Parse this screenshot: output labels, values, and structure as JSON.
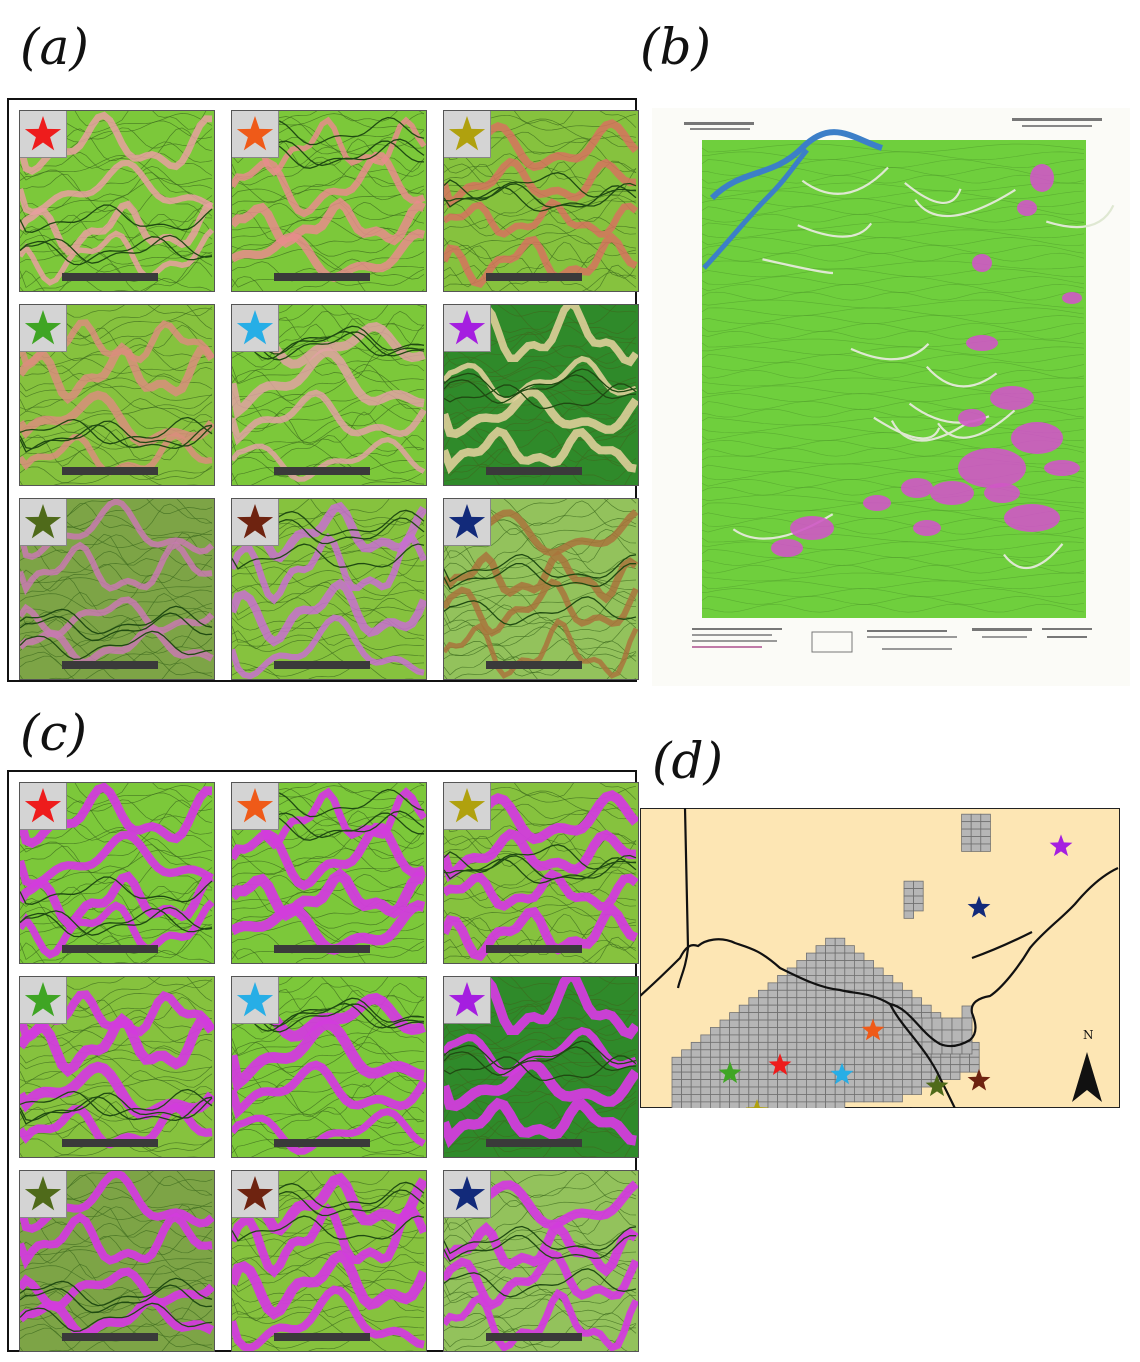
{
  "panels": {
    "a": {
      "label": "(a)"
    },
    "b": {
      "label": "(b)"
    },
    "c": {
      "label": "(c)"
    },
    "d": {
      "label": "(d)"
    }
  },
  "tiles": [
    {
      "id": "red",
      "color": "#ee1c1c",
      "base": "#7cc83a",
      "feature": "#e8a0a0"
    },
    {
      "id": "orange",
      "color": "#ef5a18",
      "base": "#7cc83a",
      "feature": "#e88c8c"
    },
    {
      "id": "olive",
      "color": "#b0a10e",
      "base": "#86c23e",
      "feature": "#d6735e"
    },
    {
      "id": "green",
      "color": "#3fa524",
      "base": "#86c23e",
      "feature": "#d98e7c"
    },
    {
      "id": "lightblue",
      "color": "#27aee6",
      "base": "#7cc83a",
      "feature": "#e0a2a2"
    },
    {
      "id": "purple",
      "color": "#a51ee0",
      "base": "#2f8a2a",
      "feature": "#e8d2a0"
    },
    {
      "id": "darkgreen",
      "color": "#4f6a1a",
      "base": "#7da446",
      "feature": "#c87ab0"
    },
    {
      "id": "brown",
      "color": "#6e2310",
      "base": "#86c23e",
      "feature": "#c870d0"
    },
    {
      "id": "navy",
      "color": "#122a7a",
      "base": "#93c25c",
      "feature": "#a9743c"
    }
  ],
  "overlay_color": "#d23cdc",
  "topo_map": {
    "base_color": "#6fcf3d",
    "highlight_color": "#cf57c5",
    "river_color": "#3c7fc8"
  },
  "region_map": {
    "background": "#fde6b4",
    "grid_color": "#b6b6b6",
    "north_label": "N",
    "stars": [
      {
        "id": "purple",
        "color": "#a51ee0"
      },
      {
        "id": "navy",
        "color": "#122a7a"
      },
      {
        "id": "orange",
        "color": "#ef5a18"
      },
      {
        "id": "red",
        "color": "#ee1c1c"
      },
      {
        "id": "green",
        "color": "#3fa524"
      },
      {
        "id": "lightblue",
        "color": "#27aee6"
      },
      {
        "id": "darkgreen",
        "color": "#4f6a1a"
      },
      {
        "id": "brown",
        "color": "#6e2310"
      },
      {
        "id": "olive",
        "color": "#b0a10e"
      }
    ]
  }
}
